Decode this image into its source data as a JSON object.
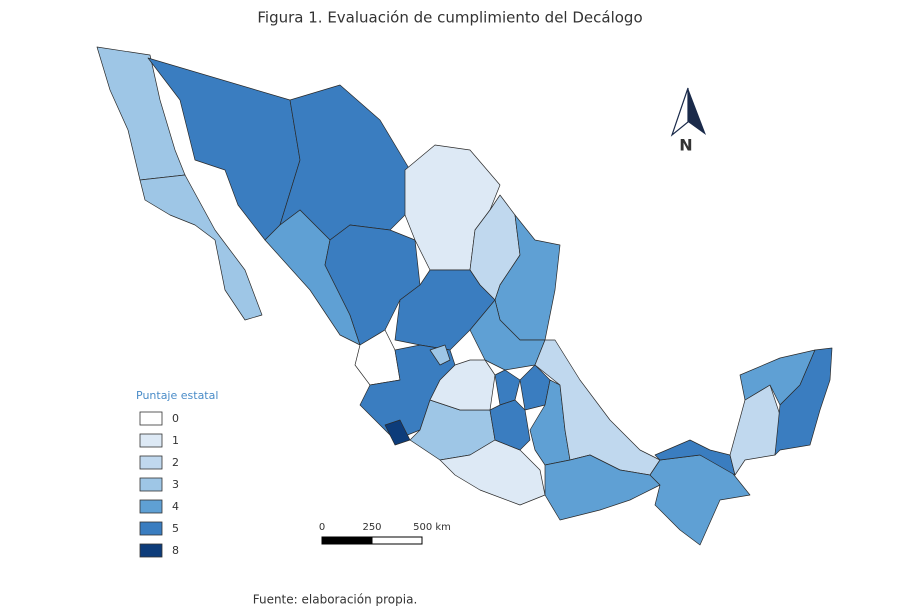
{
  "header": {
    "title": "Figura 1. Evaluación de cumplimiento del Decálogo"
  },
  "north_arrow": {
    "label": "N"
  },
  "legend": {
    "title": "Puntaje estatal",
    "items": [
      {
        "label": "0",
        "color": "#ffffff"
      },
      {
        "label": "1",
        "color": "#dde9f5"
      },
      {
        "label": "2",
        "color": "#c0d8ee"
      },
      {
        "label": "3",
        "color": "#9ec6e6"
      },
      {
        "label": "4",
        "color": "#5fa0d4"
      },
      {
        "label": "5",
        "color": "#3a7dc0"
      },
      {
        "label": "8",
        "color": "#0d3c7a"
      }
    ]
  },
  "scale_bar": {
    "labels": [
      "0",
      "250",
      "500 km"
    ]
  },
  "footer": {
    "source": "Fuente: elaboración propia."
  }
}
